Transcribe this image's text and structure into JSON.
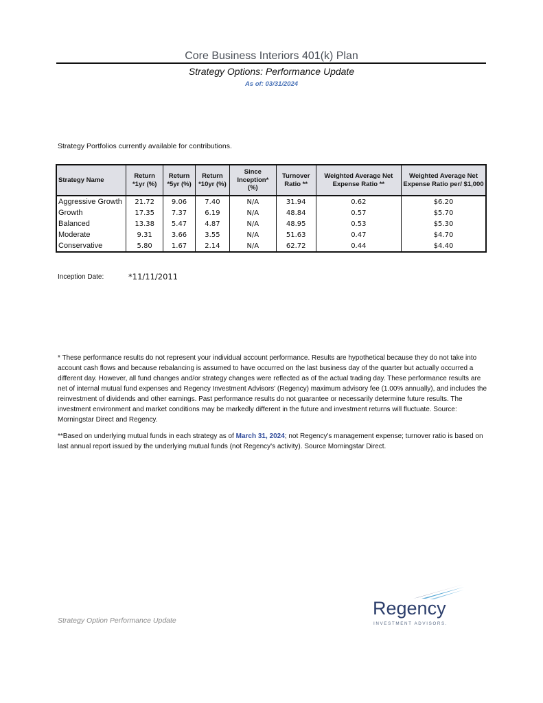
{
  "header": {
    "title": "Core Business Interiors 401(k) Plan",
    "subtitle": "Strategy Options: Performance Update",
    "as_of": "As of: 03/31/2024"
  },
  "intro": "Strategy Portfolios currently available for contributions.",
  "table": {
    "columns": [
      "Strategy Name",
      "Return *1yr (%)",
      "Return *5yr (%)",
      "Return *10yr (%)",
      "Since Inception* (%)",
      "Turnover Ratio **",
      "Weighted Average Net Expense Ratio **",
      "Weighted Average Net Expense Ratio per/ $1,000"
    ],
    "rows": [
      [
        "Aggressive Growth",
        "21.72",
        "9.06",
        "7.40",
        "N/A",
        "31.94",
        "0.62",
        "$6.20"
      ],
      [
        "Growth",
        "17.35",
        "7.37",
        "6.19",
        "N/A",
        "48.84",
        "0.57",
        "$5.70"
      ],
      [
        "Balanced",
        "13.38",
        "5.47",
        "4.87",
        "N/A",
        "48.95",
        "0.53",
        "$5.30"
      ],
      [
        "Moderate",
        "9.31",
        "3.66",
        "3.55",
        "N/A",
        "51.63",
        "0.47",
        "$4.70"
      ],
      [
        "Conservative",
        "5.80",
        "1.67",
        "2.14",
        "N/A",
        "62.72",
        "0.44",
        "$4.40"
      ]
    ]
  },
  "inception": {
    "label": "Inception Date:",
    "value": "*11/11/2011"
  },
  "footnote1": "* These performance results do not represent your individual account performance.  Results are hypothetical because they do not take into account cash flows and because rebalancing is assumed to have occurred on the last business day of the quarter but actually occurred a different day. However, all fund changes and/or strategy changes were reflected as of the actual trading day. These performance results are net of internal mutual fund expenses and Regency Investment Advisors' (Regency) maximum advisory fee (1.00% annually), and includes the reinvestment of dividends and other earnings.  Past performance results do not guarantee or necessarily determine future results.  The investment environment and market conditions may be markedly different in the future and investment returns will fluctuate. Source: Morningstar Direct and Regency.",
  "footnote2": {
    "before": "**Based on underlying mutual funds in each strategy as of ",
    "highlight": "March 31, 2024",
    "after": "; not Regency's management expense; turnover ratio is based on last annual report  issued by the underlying mutual funds (not Regency's activity). Source Morningstar Direct."
  },
  "footer": "Strategy Option Performance Update",
  "logo": {
    "name": "Regency",
    "tagline": "INVESTMENT ADVISORS.",
    "color": "#2c3e6b",
    "accent": "#5aa9d6"
  }
}
